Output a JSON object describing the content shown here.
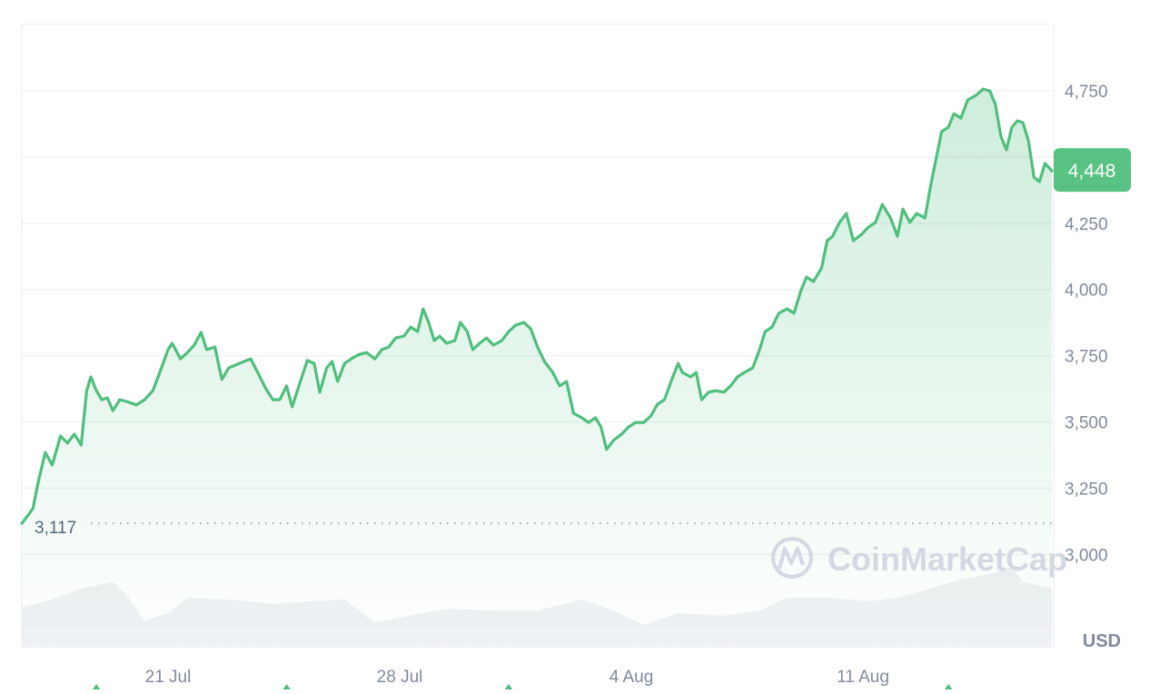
{
  "chart_data": {
    "type": "area",
    "currency_label": "USD",
    "start_price_label": "3,117",
    "start_price": 3117,
    "current_price_label": "4,448",
    "current_price": 4448,
    "watermark": "CoinMarketCap",
    "ylim": [
      2850,
      4950
    ],
    "y_ticks": [
      {
        "value": 3000,
        "label": "3,000"
      },
      {
        "value": 3250,
        "label": "3,250"
      },
      {
        "value": 3500,
        "label": "3,500"
      },
      {
        "value": 3750,
        "label": "3,750"
      },
      {
        "value": 4000,
        "label": "4,000"
      },
      {
        "value": 4250,
        "label": "4,250"
      },
      {
        "value": 4500,
        "label": ""
      },
      {
        "value": 4750,
        "label": "4,750"
      }
    ],
    "x_ticks": [
      {
        "date": "Jul 21 00:00",
        "label": "21 Jul"
      },
      {
        "date": "Jul 28 00:00",
        "label": "28 Jul"
      },
      {
        "date": "Aug 4 00:00",
        "label": "4 Aug"
      },
      {
        "date": "Aug 11 00:00",
        "label": "11 Aug"
      }
    ],
    "grid": true,
    "colors": {
      "line": "#4fbf7d",
      "fill": "#4fbf7d",
      "badge": "#58c283",
      "volume": "#eff1f4",
      "axis_text": "#808a9d"
    },
    "event_markers": [
      "Jul 18 20:00",
      "Jul 24 14:00",
      "Jul 31 07:00",
      "Aug 13 14:00"
    ],
    "price_series": [
      [
        "Jul 16 14:00",
        3117
      ],
      [
        "Jul 16 22:00",
        3173
      ],
      [
        "Jul 17 02:00",
        3276
      ],
      [
        "Jul 17 07:00",
        3385
      ],
      [
        "Jul 17 12:00",
        3337
      ],
      [
        "Jul 17 18:00",
        3447
      ],
      [
        "Jul 17 23:00",
        3420
      ],
      [
        "Jul 18 04:00",
        3454
      ],
      [
        "Jul 18 09:00",
        3413
      ],
      [
        "Jul 18 13:00",
        3618
      ],
      [
        "Jul 18 16:00",
        3670
      ],
      [
        "Jul 18 20:00",
        3618
      ],
      [
        "Jul 19 00:00",
        3584
      ],
      [
        "Jul 19 04:00",
        3591
      ],
      [
        "Jul 19 08:00",
        3543
      ],
      [
        "Jul 19 13:00",
        3584
      ],
      [
        "Jul 19 18:00",
        3577
      ],
      [
        "Jul 20 01:00",
        3564
      ],
      [
        "Jul 20 07:00",
        3584
      ],
      [
        "Jul 20 13:00",
        3618
      ],
      [
        "Jul 20 18:00",
        3687
      ],
      [
        "Jul 21 00:00",
        3773
      ],
      [
        "Jul 21 03:00",
        3797
      ],
      [
        "Jul 21 09:00",
        3738
      ],
      [
        "Jul 21 14:00",
        3762
      ],
      [
        "Jul 21 19:00",
        3790
      ],
      [
        "Jul 22 00:00",
        3838
      ],
      [
        "Jul 22 04:00",
        3773
      ],
      [
        "Jul 22 10:00",
        3783
      ],
      [
        "Jul 22 15:00",
        3660
      ],
      [
        "Jul 22 20:00",
        3704
      ],
      [
        "Jul 23 01:00",
        3715
      ],
      [
        "Jul 23 07:00",
        3728
      ],
      [
        "Jul 23 12:00",
        3738
      ],
      [
        "Jul 23 17:00",
        3687
      ],
      [
        "Jul 23 23:00",
        3625
      ],
      [
        "Jul 24 04:00",
        3584
      ],
      [
        "Jul 24 09:00",
        3584
      ],
      [
        "Jul 24 14:00",
        3636
      ],
      [
        "Jul 24 18:00",
        3557
      ],
      [
        "Jul 25 00:00",
        3653
      ],
      [
        "Jul 25 05:00",
        3732
      ],
      [
        "Jul 25 10:00",
        3721
      ],
      [
        "Jul 25 14:00",
        3612
      ],
      [
        "Jul 25 19:00",
        3704
      ],
      [
        "Jul 25 23:00",
        3728
      ],
      [
        "Jul 26 03:00",
        3653
      ],
      [
        "Jul 26 08:00",
        3721
      ],
      [
        "Jul 26 14:00",
        3742
      ],
      [
        "Jul 26 19:00",
        3756
      ],
      [
        "Jul 27 00:00",
        3762
      ],
      [
        "Jul 27 06:00",
        3738
      ],
      [
        "Jul 27 11:00",
        3773
      ],
      [
        "Jul 27 16:00",
        3783
      ],
      [
        "Jul 27 21:00",
        3817
      ],
      [
        "Jul 28 03:00",
        3824
      ],
      [
        "Jul 28 08:00",
        3858
      ],
      [
        "Jul 28 13:00",
        3841
      ],
      [
        "Jul 28 17:00",
        3927
      ],
      [
        "Jul 28 21:00",
        3876
      ],
      [
        "Jul 29 01:00",
        3807
      ],
      [
        "Jul 29 05:00",
        3824
      ],
      [
        "Jul 29 10:00",
        3797
      ],
      [
        "Jul 29 16:00",
        3807
      ],
      [
        "Jul 29 20:00",
        3876
      ],
      [
        "Jul 30 01:00",
        3841
      ],
      [
        "Jul 30 05:00",
        3773
      ],
      [
        "Jul 30 10:00",
        3797
      ],
      [
        "Jul 30 15:00",
        3817
      ],
      [
        "Jul 30 20:00",
        3790
      ],
      [
        "Jul 31 02:00",
        3807
      ],
      [
        "Jul 31 07:00",
        3841
      ],
      [
        "Jul 31 12:00",
        3865
      ],
      [
        "Jul 31 18:00",
        3876
      ],
      [
        "Jul 31 23:00",
        3852
      ],
      [
        "Aug 1 04:00",
        3783
      ],
      [
        "Aug 1 09:00",
        3728
      ],
      [
        "Aug 1 15:00",
        3687
      ],
      [
        "Aug 1 20:00",
        3636
      ],
      [
        "Aug 2 01:00",
        3653
      ],
      [
        "Aug 2 06:00",
        3533
      ],
      [
        "Aug 2 12:00",
        3516
      ],
      [
        "Aug 2 17:00",
        3498
      ],
      [
        "Aug 2 22:00",
        3516
      ],
      [
        "Aug 3 02:00",
        3481
      ],
      [
        "Aug 3 06:00",
        3396
      ],
      [
        "Aug 3 11:00",
        3430
      ],
      [
        "Aug 3 17:00",
        3454
      ],
      [
        "Aug 3 22:00",
        3481
      ],
      [
        "Aug 4 03:00",
        3498
      ],
      [
        "Aug 4 09:00",
        3498
      ],
      [
        "Aug 4 14:00",
        3522
      ],
      [
        "Aug 4 19:00",
        3567
      ],
      [
        "Aug 5 00:00",
        3584
      ],
      [
        "Aug 5 06:00",
        3670
      ],
      [
        "Aug 5 10:00",
        3721
      ],
      [
        "Aug 5 13:00",
        3687
      ],
      [
        "Aug 5 19:00",
        3670
      ],
      [
        "Aug 5 23:00",
        3687
      ],
      [
        "Aug 6 03:00",
        3584
      ],
      [
        "Aug 6 08:00",
        3612
      ],
      [
        "Aug 6 13:00",
        3618
      ],
      [
        "Aug 6 19:00",
        3612
      ],
      [
        "Aug 7 00:00",
        3636
      ],
      [
        "Aug 7 05:00",
        3670
      ],
      [
        "Aug 7 10:00",
        3687
      ],
      [
        "Aug 7 16:00",
        3704
      ],
      [
        "Aug 7 21:00",
        3773
      ],
      [
        "Aug 8 01:00",
        3841
      ],
      [
        "Aug 8 06:00",
        3858
      ],
      [
        "Aug 8 11:00",
        3910
      ],
      [
        "Aug 8 17:00",
        3927
      ],
      [
        "Aug 8 22:00",
        3910
      ],
      [
        "Aug 9 03:00",
        3996
      ],
      [
        "Aug 9 07:00",
        4047
      ],
      [
        "Aug 9 12:00",
        4030
      ],
      [
        "Aug 9 18:00",
        4081
      ],
      [
        "Aug 9 22:00",
        4184
      ],
      [
        "Aug 10 02:00",
        4201
      ],
      [
        "Aug 10 07:00",
        4253
      ],
      [
        "Aug 10 12:00",
        4287
      ],
      [
        "Aug 10 17:00",
        4184
      ],
      [
        "Aug 10 23:00",
        4208
      ],
      [
        "Aug 11 04:00",
        4236
      ],
      [
        "Aug 11 09:00",
        4253
      ],
      [
        "Aug 11 14:00",
        4321
      ],
      [
        "Aug 11 20:00",
        4270
      ],
      [
        "Aug 12 01:00",
        4201
      ],
      [
        "Aug 12 05:00",
        4304
      ],
      [
        "Aug 12 10:00",
        4253
      ],
      [
        "Aug 12 15:00",
        4287
      ],
      [
        "Aug 12 21:00",
        4270
      ],
      [
        "Aug 13 01:00",
        4390
      ],
      [
        "Aug 13 05:00",
        4493
      ],
      [
        "Aug 13 09:00",
        4596
      ],
      [
        "Aug 13 14:00",
        4613
      ],
      [
        "Aug 13 18:00",
        4664
      ],
      [
        "Aug 13 23:00",
        4647
      ],
      [
        "Aug 14 04:00",
        4716
      ],
      [
        "Aug 14 10:00",
        4733
      ],
      [
        "Aug 14 15:00",
        4757
      ],
      [
        "Aug 14 20:00",
        4750
      ],
      [
        "Aug 15 00:00",
        4699
      ],
      [
        "Aug 15 04:00",
        4579
      ],
      [
        "Aug 15 08:00",
        4527
      ],
      [
        "Aug 15 12:00",
        4613
      ],
      [
        "Aug 15 16:00",
        4637
      ],
      [
        "Aug 15 20:00",
        4630
      ],
      [
        "Aug 16 00:00",
        4561
      ],
      [
        "Aug 16 04:00",
        4424
      ],
      [
        "Aug 16 08:00",
        4407
      ],
      [
        "Aug 16 12:00",
        4476
      ],
      [
        "Aug 16 17:00",
        4448
      ]
    ],
    "volume_relative": [
      [
        "Jul 16 14:00",
        0.48
      ],
      [
        "Jul 17 12:00",
        0.57
      ],
      [
        "Jul 18 09:00",
        0.7
      ],
      [
        "Jul 19 08:00",
        0.78
      ],
      [
        "Jul 19 18:00",
        0.62
      ],
      [
        "Jul 20 07:00",
        0.32
      ],
      [
        "Jul 21 00:00",
        0.41
      ],
      [
        "Jul 21 14:00",
        0.59
      ],
      [
        "Jul 22 20:00",
        0.57
      ],
      [
        "Jul 24 04:00",
        0.52
      ],
      [
        "Jul 25 10:00",
        0.55
      ],
      [
        "Jul 26 08:00",
        0.57
      ],
      [
        "Jul 27 06:00",
        0.3
      ],
      [
        "Jul 28 08:00",
        0.38
      ],
      [
        "Jul 29 10:00",
        0.46
      ],
      [
        "Jul 30 20:00",
        0.44
      ],
      [
        "Aug 1 04:00",
        0.44
      ],
      [
        "Aug 2 12:00",
        0.57
      ],
      [
        "Aug 3 11:00",
        0.44
      ],
      [
        "Aug 4 09:00",
        0.27
      ],
      [
        "Aug 5 10:00",
        0.41
      ],
      [
        "Aug 6 19:00",
        0.38
      ],
      [
        "Aug 7 21:00",
        0.44
      ],
      [
        "Aug 8 17:00",
        0.59
      ],
      [
        "Aug 9 22:00",
        0.59
      ],
      [
        "Aug 11 04:00",
        0.55
      ],
      [
        "Aug 12 01:00",
        0.59
      ],
      [
        "Aug 12 21:00",
        0.68
      ],
      [
        "Aug 13 23:00",
        0.81
      ],
      [
        "Aug 14 20:00",
        0.87
      ],
      [
        "Aug 15 12:00",
        0.95
      ],
      [
        "Aug 15 20:00",
        0.78
      ],
      [
        "Aug 16 17:00",
        0.7
      ]
    ]
  }
}
